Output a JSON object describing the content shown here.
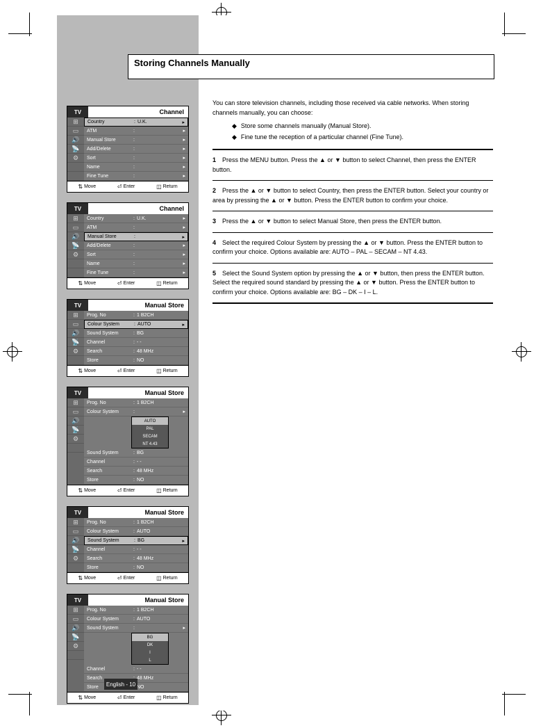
{
  "heading": "Storing Channels Manually",
  "page_number": "English - 10",
  "bullets": [
    "Store some channels manually (Manual Store).",
    "Fine tune the reception of a particular channel (Fine Tune)."
  ],
  "steps": {
    "s1": "Press the MENU button. Press the ▲ or ▼ button to select Channel, then press the ENTER button.",
    "s2": "Press the ▲ or ▼ button to select Country, then press the ENTER button. Select your country or area by pressing the ▲ or ▼ button. Press the ENTER button to confirm your choice.",
    "s3": "Press the ▲ or ▼ button to select Manual Store, then press the ENTER button.",
    "s4": "Select the required Colour System by pressing the ▲ or ▼ button. Press the ENTER button to confirm your choice. Options available are: AUTO – PAL – SECAM – NT 4.43.",
    "s5": "Select the Sound System option by pressing the ▲ or ▼ button, then press the ENTER button. Select the required sound standard by pressing the ▲ or ▼ button. Press the ENTER button to confirm your choice. Options available are: BG – DK – I – L."
  },
  "cards": [
    {
      "title": "Channel",
      "rows": [
        {
          "label": "Country",
          "value": "U.K.",
          "selected": true,
          "arrow": true
        },
        {
          "label": "ATM",
          "value": "",
          "arrow": true
        },
        {
          "label": "Manual Store",
          "value": "",
          "arrow": true
        },
        {
          "label": "Add/Delete",
          "value": "",
          "arrow": true
        },
        {
          "label": "Sort",
          "value": "",
          "arrow": true
        },
        {
          "label": "Name",
          "value": "",
          "arrow": true
        },
        {
          "label": "Fine Tune",
          "value": "",
          "arrow": true
        }
      ]
    },
    {
      "title": "Channel",
      "rows": [
        {
          "label": "Country",
          "value": "U.K.",
          "arrow": true
        },
        {
          "label": "ATM",
          "value": "",
          "arrow": true
        },
        {
          "label": "Manual Store",
          "value": "",
          "selected": true,
          "arrow": true
        },
        {
          "label": "Add/Delete",
          "value": "",
          "arrow": true
        },
        {
          "label": "Sort",
          "value": "",
          "arrow": true
        },
        {
          "label": "Name",
          "value": "",
          "arrow": true
        },
        {
          "label": "Fine Tune",
          "value": "",
          "arrow": true
        }
      ]
    },
    {
      "title": "Manual Store",
      "rows": [
        {
          "label": "Prog. No",
          "value": "1     B2CH"
        },
        {
          "label": "Colour System",
          "value": "AUTO",
          "selected": true,
          "arrow": true
        },
        {
          "label": "Sound System",
          "value": "BG"
        },
        {
          "label": "Channel",
          "value": "-     -"
        },
        {
          "label": "Search",
          "value": "48    MHz"
        },
        {
          "label": "Store",
          "value": "NO"
        }
      ]
    },
    {
      "title": "Manual Store",
      "dropdown_after": 1,
      "dropdown_options": [
        "AUTO",
        "PAL",
        "SECAM",
        "NT 4.43"
      ],
      "dropdown_selected": 0,
      "rows": [
        {
          "label": "Prog. No",
          "value": "1     B2CH"
        },
        {
          "label": "Colour System",
          "value": "",
          "arrow": true
        },
        {
          "label": "Sound System",
          "value": "BG"
        },
        {
          "label": "Channel",
          "value": "-     -"
        },
        {
          "label": "Search",
          "value": "48    MHz"
        },
        {
          "label": "Store",
          "value": "NO"
        }
      ]
    },
    {
      "title": "Manual Store",
      "rows": [
        {
          "label": "Prog. No",
          "value": "1     B2CH"
        },
        {
          "label": "Colour System",
          "value": "AUTO"
        },
        {
          "label": "Sound System",
          "value": "BG",
          "selected": true,
          "arrow": true
        },
        {
          "label": "Channel",
          "value": "-     -"
        },
        {
          "label": "Search",
          "value": "48    MHz"
        },
        {
          "label": "Store",
          "value": "NO"
        }
      ]
    },
    {
      "title": "Manual Store",
      "dropdown_after": 2,
      "dropdown_options": [
        "BG",
        "DK",
        "I",
        "L"
      ],
      "dropdown_selected": 0,
      "rows": [
        {
          "label": "Prog. No",
          "value": "1     B2CH"
        },
        {
          "label": "Colour System",
          "value": "AUTO"
        },
        {
          "label": "Sound System",
          "value": "",
          "arrow": true
        },
        {
          "label": "Channel",
          "value": "-     -"
        },
        {
          "label": "Search",
          "value": "48    MHz"
        },
        {
          "label": "Store",
          "value": "NO"
        }
      ]
    }
  ],
  "footer": {
    "move": "Move",
    "enter": "Enter",
    "return": "Return"
  },
  "icons": [
    "⊞",
    "▭",
    "🔊",
    "📡",
    "⚙",
    "",
    "",
    ""
  ],
  "colors": {
    "sidebar": "#b9b9b9",
    "card_body": "#7a7a7a",
    "card_iconcol": "#6a6a6a",
    "selected_row": "#bfbfbf",
    "badge": "#2b2b2b"
  }
}
